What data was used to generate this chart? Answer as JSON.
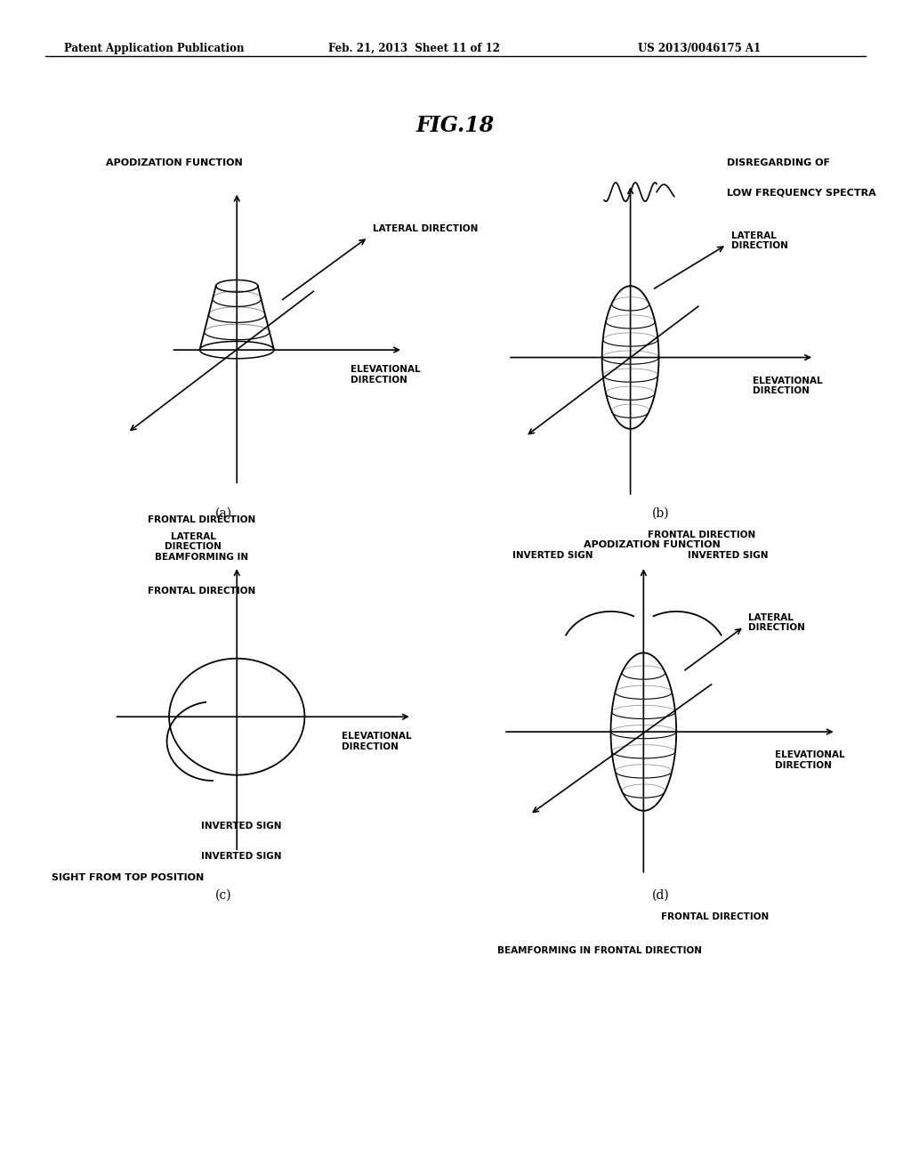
{
  "bg_color": "#ffffff",
  "header_text": "Patent Application Publication",
  "header_date": "Feb. 21, 2013  Sheet 11 of 12",
  "header_patent": "US 2013/0046175 A1",
  "fig_title": "FIG.18",
  "panel_a": {
    "label": "(a)",
    "title": "APODIZATION FUNCTION",
    "subtitle1": "BEAMFORMING IN",
    "subtitle2": "FRONTAL DIRECTION",
    "lateral_label": "LATERAL DIRECTION",
    "elevational_label": "ELEVATIONAL\nDIRECTION",
    "frontal_label": "FRONTAL DIRECTION"
  },
  "panel_b": {
    "label": "(b)",
    "title1": "DISREGARDING OF",
    "title2": "LOW FREQUENCY SPECTRA",
    "lateral_label": "LATERAL\nDIRECTION",
    "elevational_label": "ELEVATIONAL\nDIRECTION",
    "frontal_label": "FRONTAL DIRECTION"
  },
  "panel_c": {
    "label": "(c)",
    "lateral_label": "LATERAL\nDIRECTION",
    "elevational_label": "ELEVATIONAL\nDIRECTION",
    "inverted_sign1": "INVERTED SIGN",
    "inverted_sign2": "INVERTED SIGN",
    "subtitle": "SIGHT FROM TOP POSITION"
  },
  "panel_d": {
    "label": "(d)",
    "title": "APODIZATION FUNCTION",
    "inverted_sign_left": "INVERTED SIGN",
    "inverted_sign_right": "INVERTED SIGN",
    "lateral_label": "LATERAL\nDIRECTION",
    "elevational_label": "ELEVATIONAL\nDIRECTION",
    "frontal_label": "FRONTAL DIRECTION",
    "subtitle1": "BEAMFORMING IN FRONTAL DIRECTION"
  }
}
